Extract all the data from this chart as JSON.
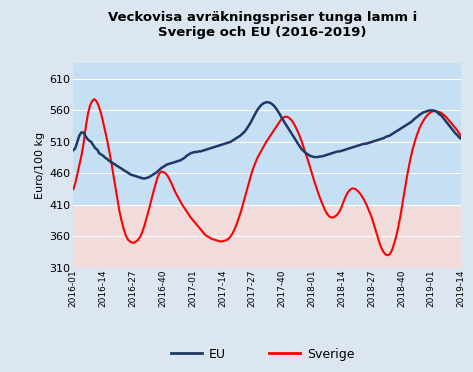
{
  "title": "Veckovisa avräkningspriser tunga lamm i\nSverige och EU (2016-2019)",
  "ylabel": "Euro/100 kg",
  "ylim": [
    310,
    635
  ],
  "yticks": [
    310,
    360,
    410,
    460,
    510,
    560,
    610
  ],
  "background_outer": "#dce6f1",
  "background_inner_top": "#c5dff5",
  "background_inner_bottom": "#f2dcdb",
  "eu_color": "#1f3864",
  "sverige_color": "#ff0000",
  "xtick_labels": [
    "2016-01",
    "2016-14",
    "2016-27",
    "2016-40",
    "2017-01",
    "2017-14",
    "2017-27",
    "2017-40",
    "2018-01",
    "2018-14",
    "2018-27",
    "2018-40",
    "2019-01",
    "2019-14"
  ],
  "pink_threshold": 410,
  "eu_values": [
    497,
    500,
    510,
    520,
    525,
    525,
    520,
    515,
    512,
    510,
    505,
    500,
    498,
    492,
    490,
    488,
    485,
    483,
    480,
    478,
    476,
    474,
    472,
    470,
    468,
    466,
    464,
    462,
    460,
    458,
    457,
    456,
    455,
    454,
    453,
    452,
    452,
    453,
    454,
    456,
    458,
    460,
    462,
    465,
    468,
    470,
    472,
    474,
    475,
    476,
    477,
    478,
    479,
    480,
    481,
    483,
    485,
    488,
    490,
    492,
    493,
    494,
    494,
    495,
    495,
    496,
    497,
    498,
    499,
    500,
    501,
    502,
    503,
    504,
    505,
    506,
    507,
    508,
    509,
    510,
    512,
    514,
    516,
    518,
    520,
    523,
    526,
    530,
    535,
    540,
    546,
    552,
    558,
    563,
    567,
    570,
    572,
    573,
    573,
    572,
    570,
    567,
    563,
    558,
    553,
    547,
    542,
    537,
    532,
    527,
    522,
    517,
    512,
    507,
    502,
    498,
    495,
    492,
    490,
    488,
    487,
    486,
    486,
    486,
    487,
    487,
    488,
    489,
    490,
    491,
    492,
    493,
    494,
    495,
    495,
    496,
    497,
    498,
    499,
    500,
    501,
    502,
    503,
    504,
    505,
    506,
    507,
    507,
    508,
    509,
    510,
    511,
    512,
    513,
    514,
    515,
    516,
    518,
    519,
    520,
    522,
    524,
    526,
    528,
    530,
    532,
    534,
    536,
    538,
    540,
    542,
    545,
    548,
    550,
    553,
    555,
    557,
    558,
    559,
    560,
    560,
    560,
    559,
    557,
    554,
    552,
    548,
    544,
    540,
    536,
    532,
    528,
    524,
    521,
    517,
    515
  ],
  "sverige_values": [
    435,
    445,
    460,
    475,
    490,
    510,
    535,
    555,
    568,
    575,
    578,
    575,
    568,
    558,
    545,
    530,
    515,
    498,
    480,
    460,
    440,
    420,
    400,
    385,
    372,
    362,
    355,
    352,
    350,
    350,
    352,
    355,
    360,
    368,
    378,
    390,
    402,
    415,
    428,
    440,
    452,
    460,
    463,
    462,
    460,
    456,
    450,
    443,
    435,
    428,
    422,
    416,
    410,
    405,
    400,
    395,
    390,
    386,
    382,
    378,
    374,
    370,
    366,
    362,
    360,
    358,
    356,
    355,
    354,
    353,
    352,
    352,
    353,
    354,
    356,
    360,
    365,
    372,
    380,
    390,
    400,
    412,
    424,
    436,
    448,
    460,
    470,
    478,
    486,
    492,
    498,
    504,
    510,
    515,
    520,
    525,
    530,
    535,
    540,
    545,
    548,
    550,
    550,
    548,
    545,
    540,
    534,
    527,
    519,
    510,
    500,
    490,
    480,
    469,
    458,
    447,
    437,
    427,
    418,
    410,
    402,
    396,
    392,
    390,
    390,
    392,
    395,
    400,
    407,
    416,
    424,
    430,
    434,
    436,
    436,
    434,
    431,
    427,
    422,
    416,
    409,
    401,
    393,
    383,
    372,
    361,
    350,
    341,
    335,
    331,
    330,
    332,
    338,
    348,
    360,
    375,
    392,
    412,
    432,
    452,
    470,
    486,
    500,
    512,
    522,
    531,
    538,
    544,
    549,
    553,
    556,
    558,
    559,
    559,
    558,
    557,
    555,
    552,
    549,
    545,
    541,
    537,
    533,
    529,
    524,
    519
  ]
}
